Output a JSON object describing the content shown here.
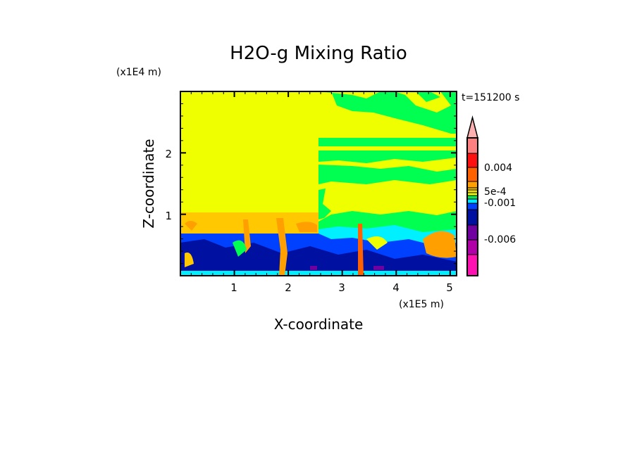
{
  "chart_data": {
    "type": "heatmap",
    "title": "H2O-g Mixing Ratio",
    "xlabel": "X-coordinate",
    "ylabel": "Z-coordinate",
    "x_unit_label": "(x1E5 m)",
    "y_unit_label": "(x1E4 m)",
    "time_label": "t=151200 s",
    "xlim": [
      0,
      5.12
    ],
    "ylim": [
      0,
      3.0
    ],
    "x_ticks": [
      "1",
      "2",
      "3",
      "4",
      "5"
    ],
    "x_tick_values": [
      1,
      2,
      3,
      4,
      5
    ],
    "y_ticks": [
      "1",
      "2"
    ],
    "y_tick_values": [
      1,
      2
    ],
    "colorbar": {
      "labels": [
        "0.004",
        "5e-4",
        "-0.001",
        "-0.006"
      ],
      "colors": [
        "#ff8080",
        "#ff1010",
        "#ff6000",
        "#ffa000",
        "#ffc800",
        "#f0e000",
        "#f0ff00",
        "#10e050",
        "#00e8ff",
        "#0040ff",
        "#0010a0",
        "#7000a0",
        "#b000a8",
        "#ff10b0"
      ],
      "extend_top_color": "#ffb0b0"
    },
    "field_colors": {
      "background": "#f0ff00",
      "green": "#00ff50",
      "light_orange": "#ffc800",
      "orange": "#ffa000",
      "dark_orange": "#ff6000",
      "cyan": "#00f0ff",
      "blue": "#0040ff",
      "dark_blue": "#0010a0",
      "purple": "#7000a0"
    }
  }
}
